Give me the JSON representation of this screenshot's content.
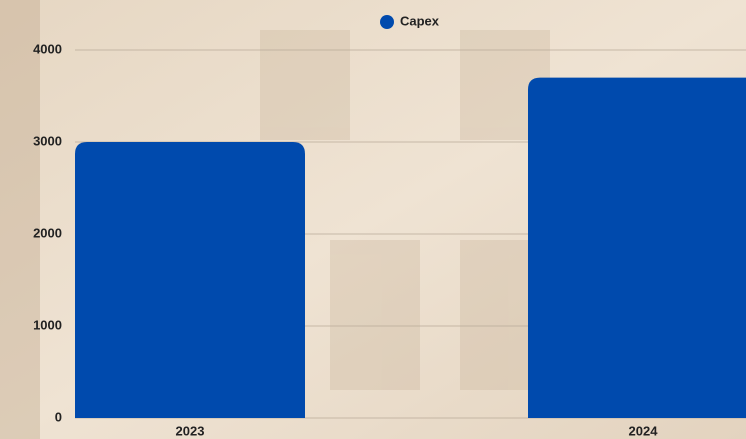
{
  "chart_data": {
    "type": "bar",
    "categories": [
      "2023",
      "2024"
    ],
    "series": [
      {
        "name": "Capex",
        "color": "#004aad",
        "values": [
          3000,
          3700
        ]
      }
    ],
    "ylim": [
      0,
      4000
    ],
    "yticks": [
      0,
      1000,
      2000,
      3000,
      4000
    ],
    "grid": true,
    "legend": "top"
  }
}
